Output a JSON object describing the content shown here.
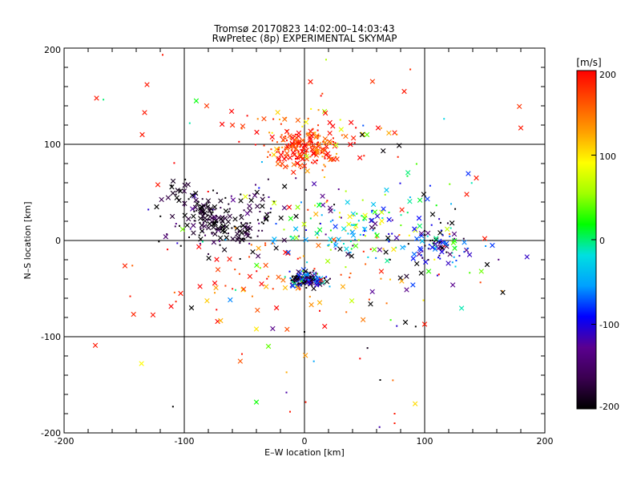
{
  "chart_data": {
    "type": "scatter",
    "title": "Tromsø 20170823 14:02:00–14:03:43",
    "subtitle": "RwPretec (8p) EXPERIMENTAL SKYMAP",
    "xlabel": "E–W location [km]",
    "ylabel": "N–S location [km]",
    "xlim": [
      -200,
      200
    ],
    "ylim": [
      -200,
      200
    ],
    "xticks": [
      "-200",
      "-100",
      "0",
      "100",
      "200"
    ],
    "yticks": [
      "-200",
      "-100",
      "0",
      "100",
      "200"
    ],
    "grid": true,
    "colorbar": {
      "label": "[m/s]",
      "range": [
        -200,
        200
      ],
      "ticks": [
        "200",
        "100",
        "0",
        "-100",
        "-200"
      ],
      "colormap": [
        "#000000",
        "#3a0050",
        "#5a0090",
        "#0000ff",
        "#00a0ff",
        "#00e0e0",
        "#00ff00",
        "#a0ff00",
        "#ffff00",
        "#ffa000",
        "#ff5000",
        "#ff0000"
      ]
    },
    "markers": {
      "large": "x",
      "small": "dot"
    },
    "clusters": [
      {
        "name": "north-red",
        "cx": 0,
        "cy": 96,
        "sx": 14,
        "sy": 10,
        "n": 170,
        "vmean": 180,
        "vspread": 25
      },
      {
        "name": "north-red-halo",
        "cx": 0,
        "cy": 110,
        "sx": 40,
        "sy": 18,
        "n": 80,
        "vmean": 170,
        "vspread": 40
      },
      {
        "name": "south-dense",
        "cx": 2,
        "cy": -40,
        "sx": 7,
        "sy": 4,
        "n": 160,
        "vmean": -140,
        "vspread": 90
      },
      {
        "name": "west-arc-black",
        "cx": -70,
        "cy": 20,
        "sx": 24,
        "sy": 18,
        "n": 150,
        "vmean": -180,
        "vspread": 35
      },
      {
        "name": "center-green",
        "cx": 30,
        "cy": 10,
        "sx": 28,
        "sy": 16,
        "n": 110,
        "vmean": 0,
        "vspread": 70
      },
      {
        "name": "east-blue",
        "cx": 112,
        "cy": -5,
        "sx": 10,
        "sy": 10,
        "n": 70,
        "vmean": -110,
        "vspread": 60
      },
      {
        "name": "east-mixed",
        "cx": 85,
        "cy": 15,
        "sx": 30,
        "sy": 30,
        "n": 80,
        "vmean": -60,
        "vspread": 120
      },
      {
        "name": "scatter-red",
        "cx": -20,
        "cy": -40,
        "sx": 55,
        "sy": 30,
        "n": 70,
        "vmean": 170,
        "vspread": 40
      },
      {
        "name": "scatter-wide",
        "cx": 0,
        "cy": 0,
        "sx": 90,
        "sy": 75,
        "n": 90,
        "vmean": 40,
        "vspread": 180
      }
    ],
    "outliers": [
      {
        "x": -173,
        "y": 148,
        "v": 190,
        "m": "x"
      },
      {
        "x": -131,
        "y": 162,
        "v": 190,
        "m": "x"
      },
      {
        "x": -133,
        "y": 133,
        "v": 190,
        "m": "x"
      },
      {
        "x": -135,
        "y": 110,
        "v": 190,
        "m": "x"
      },
      {
        "x": -118,
        "y": 193,
        "v": 190,
        "m": "dot"
      },
      {
        "x": -122,
        "y": 58,
        "v": 190,
        "m": "x"
      },
      {
        "x": -123,
        "y": 35,
        "v": -200,
        "m": "x"
      },
      {
        "x": -174,
        "y": -109,
        "v": 190,
        "m": "x"
      },
      {
        "x": -145,
        "y": -58,
        "v": 190,
        "m": "dot"
      },
      {
        "x": -103,
        "y": -55,
        "v": 190,
        "m": "x"
      },
      {
        "x": -94,
        "y": -70,
        "v": -200,
        "m": "x"
      },
      {
        "x": 180,
        "y": 117,
        "v": 190,
        "m": "x"
      },
      {
        "x": 83,
        "y": 155,
        "v": 190,
        "m": "x"
      },
      {
        "x": 5,
        "y": 165,
        "v": 190,
        "m": "x"
      },
      {
        "x": 18,
        "y": 188,
        "v": 60,
        "m": "dot"
      },
      {
        "x": 100,
        "y": -87,
        "v": 190,
        "m": "x"
      },
      {
        "x": 84,
        "y": -85,
        "v": -200,
        "m": "x"
      },
      {
        "x": 165,
        "y": -54,
        "v": -200,
        "m": "x"
      },
      {
        "x": 152,
        "y": -25,
        "v": -200,
        "m": "x"
      },
      {
        "x": 150,
        "y": 2,
        "v": 190,
        "m": "x"
      },
      {
        "x": 135,
        "y": 48,
        "v": 190,
        "m": "x"
      },
      {
        "x": 143,
        "y": 65,
        "v": 190,
        "m": "x"
      },
      {
        "x": -30,
        "y": -110,
        "v": 40,
        "m": "x"
      },
      {
        "x": -40,
        "y": -92,
        "v": 100,
        "m": "x"
      },
      {
        "x": -40,
        "y": -168,
        "v": 20,
        "m": "x"
      },
      {
        "x": -15,
        "y": -158,
        "v": -120,
        "m": "dot"
      },
      {
        "x": 63,
        "y": -145,
        "v": -200,
        "m": "dot"
      },
      {
        "x": 75,
        "y": -180,
        "v": 190,
        "m": "dot"
      },
      {
        "x": 75,
        "y": -190,
        "v": 190,
        "m": "dot"
      },
      {
        "x": 0,
        "y": -95,
        "v": -200,
        "m": "dot"
      },
      {
        "x": 1,
        "y": -168,
        "v": 190,
        "m": "dot"
      },
      {
        "x": -52,
        "y": -118,
        "v": 190,
        "m": "dot"
      },
      {
        "x": -12,
        "y": -178,
        "v": 190,
        "m": "dot"
      },
      {
        "x": 55,
        "y": -66,
        "v": -200,
        "m": "x"
      },
      {
        "x": 48,
        "y": 110,
        "v": -200,
        "m": "x"
      },
      {
        "x": 52,
        "y": 110,
        "v": 40,
        "m": "x"
      }
    ]
  }
}
